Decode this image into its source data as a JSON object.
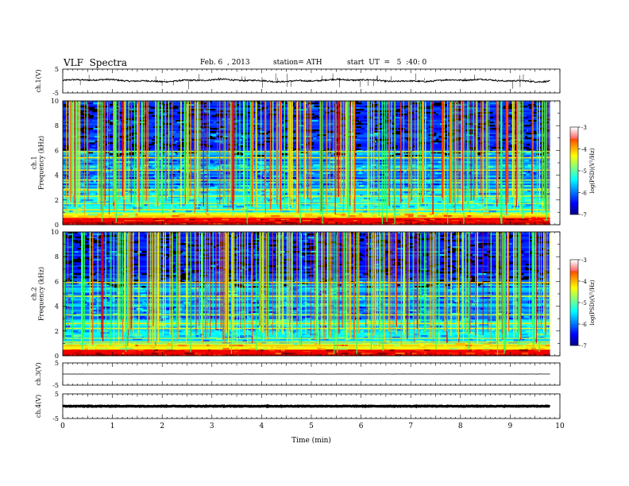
{
  "header": {
    "title": "VLF  Spectra",
    "date": "Feb. 6  , 2013",
    "station": "station= ATH",
    "start": "start  UT  =   5  :40: 0"
  },
  "chart_data": {
    "type": "heatmap",
    "xlabel": "Time  (min)",
    "xlim": [
      0,
      10
    ],
    "x_ticks": [
      "0",
      "1",
      "2",
      "3",
      "4",
      "5",
      "6",
      "7",
      "8",
      "9",
      "10"
    ],
    "data_end_min": 9.8,
    "panels": [
      {
        "id": "ch1-voltage",
        "ylabel": "ch.1(V)",
        "ylim": [
          -5,
          5
        ],
        "y_ticks": [
          "5",
          "-5"
        ],
        "baseline": 0.2,
        "style": "noisy"
      },
      {
        "id": "ch1-spectrogram",
        "ylabel": "ch.1\nFrequency  (kHz)",
        "ylim": [
          0,
          10
        ],
        "y_ticks": [
          "0",
          "2",
          "4",
          "6",
          "8",
          "10"
        ],
        "colorbar": {
          "label": "log(PSD)(V²/Hz)",
          "range": [
            -7,
            -3
          ],
          "ticks": [
            "-3",
            "-4",
            "-5",
            "-6",
            "-7"
          ]
        }
      },
      {
        "id": "ch2-spectrogram",
        "ylabel": "ch.2\nFrequency  (kHz)",
        "ylim": [
          0,
          10
        ],
        "y_ticks": [
          "0",
          "2",
          "4",
          "6",
          "8",
          "10"
        ],
        "colorbar": {
          "label": "log(PSD)(V²/Hz)",
          "range": [
            -7,
            -3
          ],
          "ticks": [
            "-3",
            "-4",
            "-5",
            "-6",
            "-7"
          ]
        }
      },
      {
        "id": "ch3-voltage",
        "ylabel": "ch.3(V)",
        "ylim": [
          -5,
          5
        ],
        "y_ticks": [
          "5",
          "-5"
        ],
        "baseline": 0.0,
        "style": "flat"
      },
      {
        "id": "ch4-voltage",
        "ylabel": "ch.4(V)",
        "ylim": [
          -5,
          5
        ],
        "y_ticks": [
          "5",
          "-5"
        ],
        "baseline": 0.0,
        "style": "thick"
      }
    ]
  }
}
